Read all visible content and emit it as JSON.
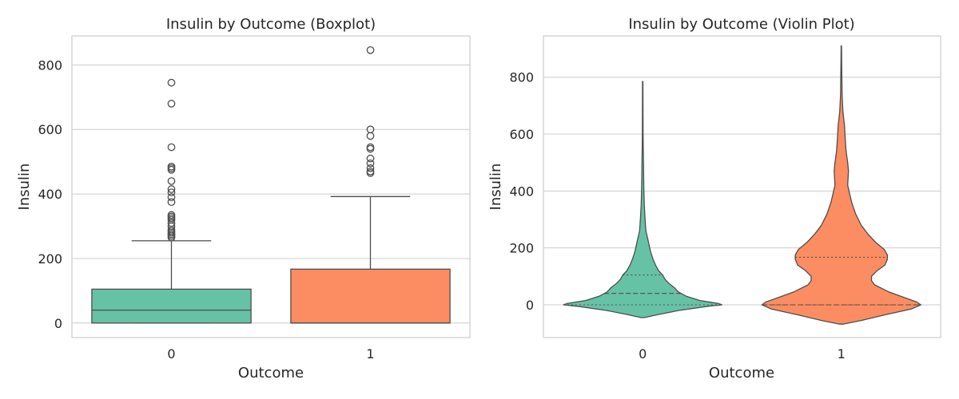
{
  "chart_data": [
    {
      "type": "box",
      "title": "Insulin by Outcome (Boxplot)",
      "xlabel": "Outcome",
      "ylabel": "Insulin",
      "ylim": [
        -45,
        890
      ],
      "yticks": [
        0,
        200,
        400,
        600,
        800
      ],
      "grid": true,
      "categories": [
        "0",
        "1"
      ],
      "series": [
        {
          "category": "0",
          "color": "#66c2a5",
          "whisker_low": 0,
          "q1": 0,
          "median": 40,
          "q3": 105,
          "whisker_high": 255,
          "outliers": [
            265,
            270,
            275,
            280,
            285,
            290,
            300,
            310,
            320,
            325,
            330,
            335,
            375,
            390,
            405,
            415,
            440,
            475,
            480,
            485,
            545,
            680,
            745
          ]
        },
        {
          "category": "1",
          "color": "#fc8d62",
          "whisker_low": 0,
          "q1": 0,
          "median": 0,
          "q3": 167,
          "whisker_high": 392,
          "outliers": [
            465,
            470,
            480,
            495,
            510,
            540,
            545,
            580,
            600,
            846
          ]
        }
      ]
    },
    {
      "type": "violin",
      "title": "Insulin by Outcome (Violin Plot)",
      "xlabel": "Outcome",
      "ylabel": "Insulin",
      "ylim": [
        -115,
        945
      ],
      "yticks": [
        0,
        200,
        400,
        600,
        800
      ],
      "grid": true,
      "inner": "quartile",
      "categories": [
        "0",
        "1"
      ],
      "series": [
        {
          "category": "0",
          "color": "#66c2a5",
          "q1": 0,
          "median": 40,
          "q3": 105,
          "density": [
            [
              -45,
              0.02
            ],
            [
              -35,
              0.18
            ],
            [
              -20,
              0.45
            ],
            [
              -5,
              0.82
            ],
            [
              0,
              1.0
            ],
            [
              5,
              0.95
            ],
            [
              15,
              0.72
            ],
            [
              30,
              0.55
            ],
            [
              45,
              0.45
            ],
            [
              60,
              0.4
            ],
            [
              75,
              0.33
            ],
            [
              90,
              0.28
            ],
            [
              105,
              0.25
            ],
            [
              120,
              0.2
            ],
            [
              140,
              0.16
            ],
            [
              160,
              0.13
            ],
            [
              185,
              0.1
            ],
            [
              210,
              0.08
            ],
            [
              230,
              0.065
            ],
            [
              260,
              0.04
            ],
            [
              300,
              0.03
            ],
            [
              350,
              0.02
            ],
            [
              400,
              0.015
            ],
            [
              450,
              0.012
            ],
            [
              500,
              0.01
            ],
            [
              550,
              0.007
            ],
            [
              600,
              0.005
            ],
            [
              680,
              0.004
            ],
            [
              785,
              0.003
            ]
          ]
        },
        {
          "category": "1",
          "color": "#fc8d62",
          "q1": 0,
          "median": 0,
          "q3": 167,
          "density": [
            [
              -68,
              0.02
            ],
            [
              -55,
              0.25
            ],
            [
              -35,
              0.55
            ],
            [
              -15,
              0.88
            ],
            [
              0,
              1.0
            ],
            [
              10,
              0.95
            ],
            [
              25,
              0.8
            ],
            [
              45,
              0.6
            ],
            [
              70,
              0.42
            ],
            [
              85,
              0.38
            ],
            [
              100,
              0.38
            ],
            [
              120,
              0.45
            ],
            [
              140,
              0.55
            ],
            [
              160,
              0.58
            ],
            [
              175,
              0.58
            ],
            [
              195,
              0.54
            ],
            [
              220,
              0.43
            ],
            [
              250,
              0.33
            ],
            [
              280,
              0.25
            ],
            [
              320,
              0.18
            ],
            [
              360,
              0.13
            ],
            [
              420,
              0.08
            ],
            [
              470,
              0.09
            ],
            [
              500,
              0.08
            ],
            [
              540,
              0.06
            ],
            [
              580,
              0.05
            ],
            [
              630,
              0.04
            ],
            [
              680,
              0.02
            ],
            [
              740,
              0.01
            ],
            [
              850,
              0.005
            ],
            [
              910,
              0.003
            ]
          ]
        }
      ]
    }
  ]
}
